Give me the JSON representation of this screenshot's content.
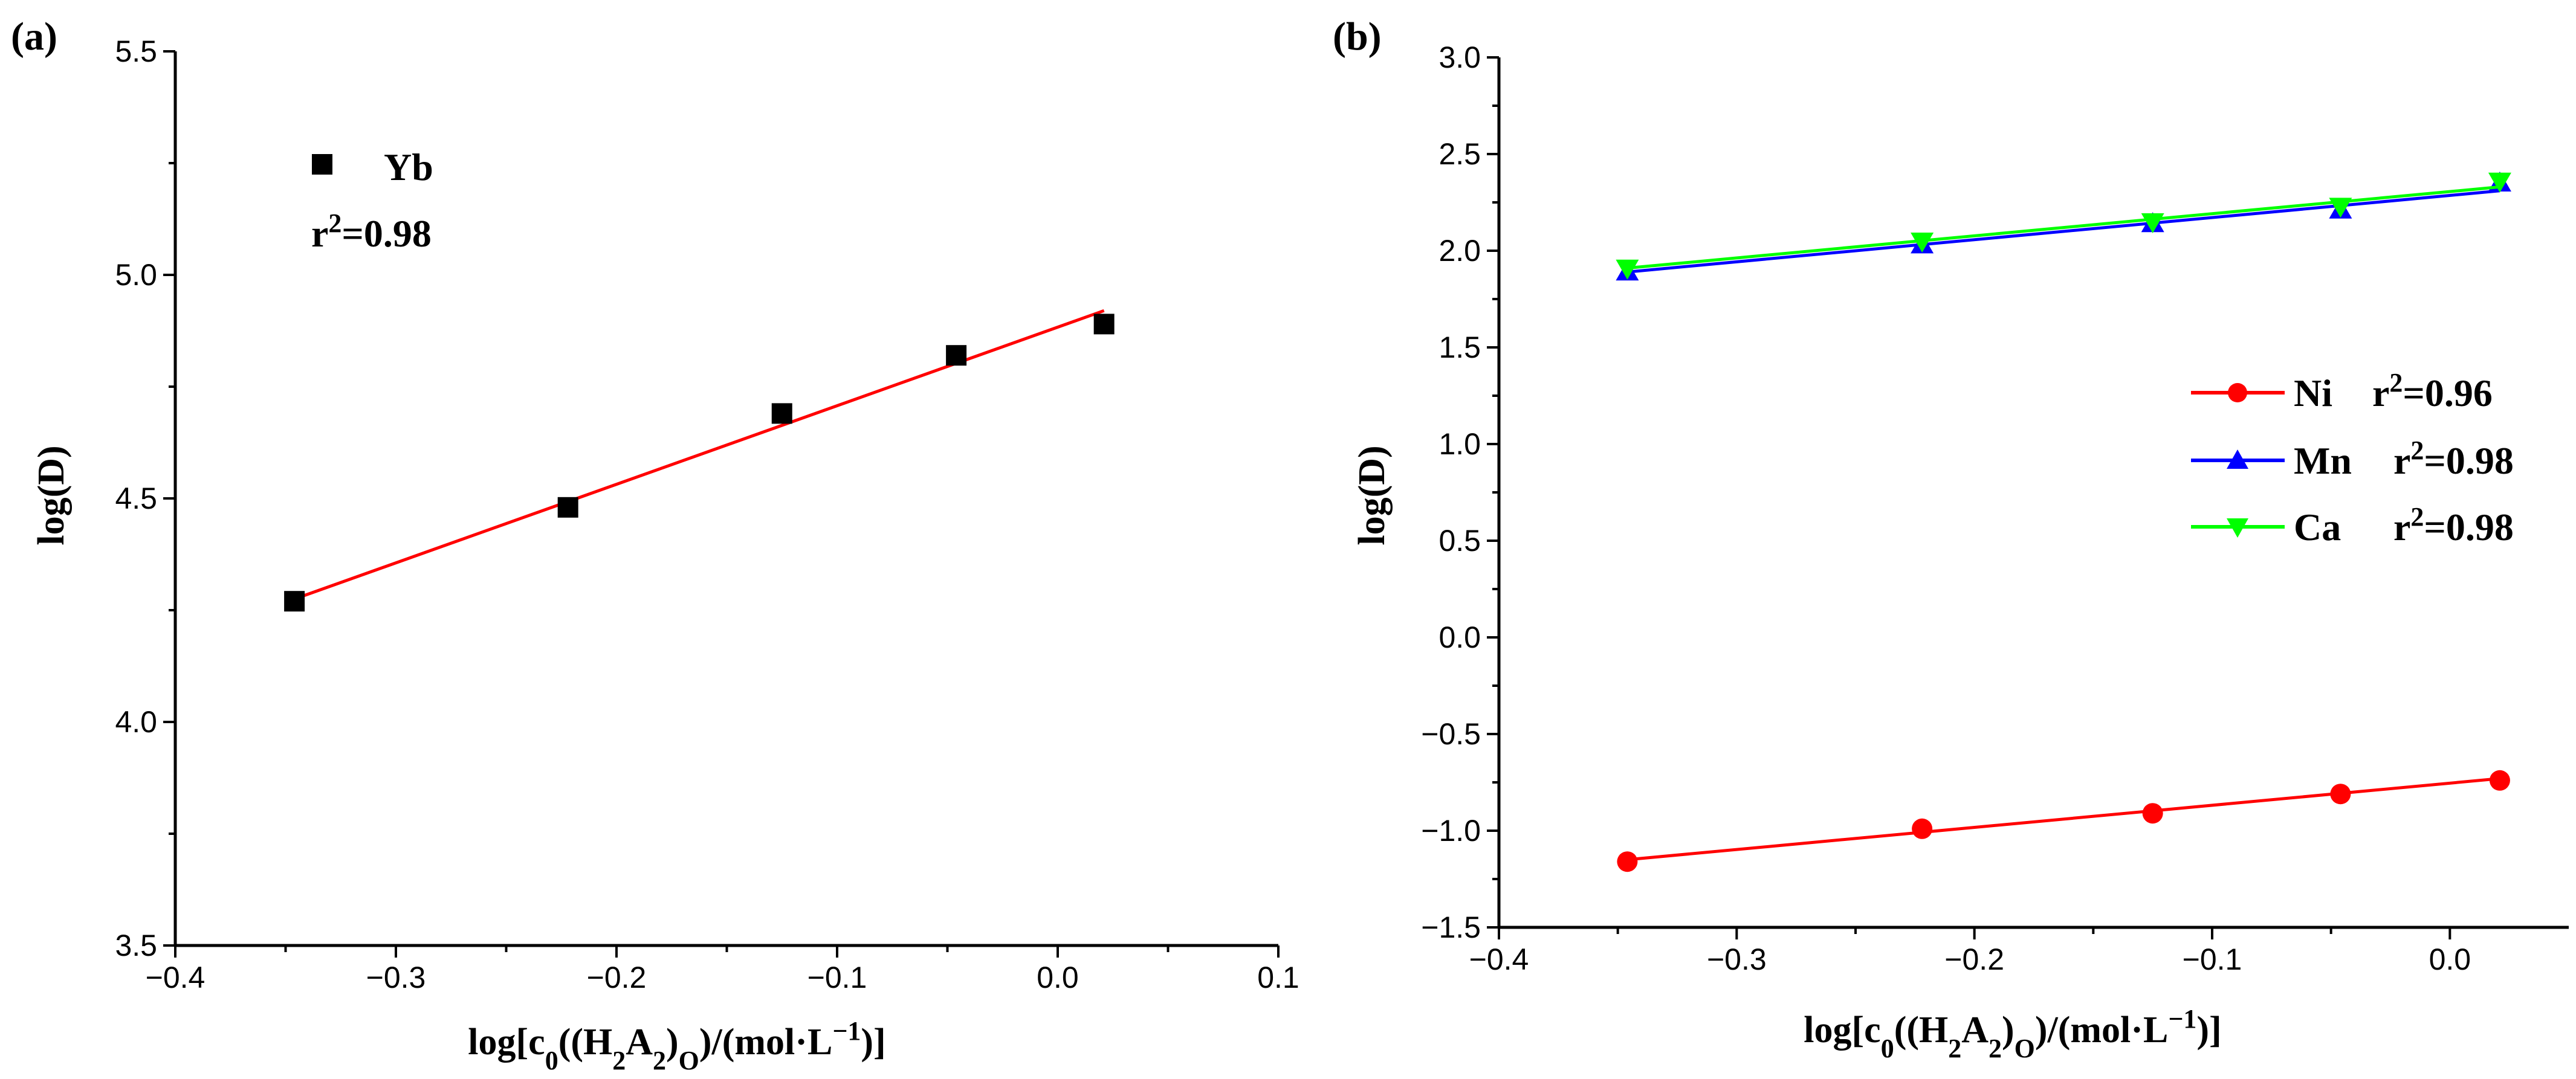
{
  "chart_data": [
    {
      "panel_label": "(a)",
      "type": "scatter",
      "xlabel": "log[c0((H2A2)O)/(mol·L−1)]",
      "ylabel": "log(D)",
      "xlim": [
        -0.4,
        0.1
      ],
      "ylim": [
        3.5,
        5.5
      ],
      "xticks": [
        -0.4,
        -0.3,
        -0.2,
        -0.1,
        0.0,
        0.1
      ],
      "xtick_labels": [
        "−0.4",
        "−0.3",
        "−0.2",
        "−0.1",
        "0.0",
        "0.1"
      ],
      "yticks": [
        3.5,
        4.0,
        4.5,
        5.0,
        5.5
      ],
      "ytick_labels": [
        "3.5",
        "4.0",
        "4.5",
        "5.0",
        "5.5"
      ],
      "legend_position": "top-left",
      "series": [
        {
          "name": "Yb",
          "r2_label": "r2=0.98",
          "color": "#000000",
          "fit_color": "#ff0000",
          "marker": "square",
          "x": [
            -0.346,
            -0.222,
            -0.125,
            -0.046,
            0.021
          ],
          "y": [
            4.27,
            4.48,
            4.69,
            4.82,
            4.89
          ],
          "fit": {
            "x": [
              -0.346,
              0.021
            ],
            "y": [
              4.275,
              4.92
            ]
          }
        }
      ]
    },
    {
      "panel_label": "(b)",
      "type": "line",
      "xlabel": "log[c0((H2A2)O)/(mol·L−1)]",
      "ylabel": "log(D)",
      "xlim": [
        -0.4,
        0.05
      ],
      "ylim": [
        -1.5,
        3.0
      ],
      "xticks": [
        -0.4,
        -0.3,
        -0.2,
        -0.1,
        0.0
      ],
      "xtick_labels": [
        "−0.4",
        "−0.3",
        "−0.2",
        "−0.1",
        "0.0"
      ],
      "yticks": [
        -1.5,
        -1.0,
        -0.5,
        0.0,
        0.5,
        1.0,
        1.5,
        2.0,
        2.5,
        3.0
      ],
      "ytick_labels": [
        "−1.5",
        "−1.0",
        "−0.5",
        "0.0",
        "0.5",
        "1.0",
        "1.5",
        "2.0",
        "2.5",
        "3.0"
      ],
      "legend_position": "right",
      "series": [
        {
          "name": "Ni",
          "r2_label": "r2=0.96",
          "color": "#ff0000",
          "marker": "circle",
          "x": [
            -0.346,
            -0.222,
            -0.125,
            -0.046,
            0.021
          ],
          "y": [
            -1.16,
            -0.99,
            -0.91,
            -0.81,
            -0.74
          ],
          "fit": {
            "x": [
              -0.346,
              0.021
            ],
            "y": [
              -1.15,
              -0.73
            ]
          }
        },
        {
          "name": "Mn",
          "r2_label": "r2=0.98",
          "color": "#0000ff",
          "marker": "triangle-up",
          "x": [
            -0.346,
            -0.222,
            -0.125,
            -0.046,
            0.021
          ],
          "y": [
            1.89,
            2.03,
            2.14,
            2.21,
            2.35
          ],
          "fit": {
            "x": [
              -0.346,
              0.021
            ],
            "y": [
              1.89,
              2.31
            ]
          }
        },
        {
          "name": "Ca",
          "r2_label": "r2=0.98",
          "color": "#00ff00",
          "marker": "triangle-down",
          "x": [
            -0.346,
            -0.222,
            -0.125,
            -0.046,
            0.021
          ],
          "y": [
            1.91,
            2.05,
            2.15,
            2.23,
            2.36
          ],
          "fit": {
            "x": [
              -0.346,
              0.021
            ],
            "y": [
              1.91,
              2.33
            ]
          }
        }
      ]
    }
  ]
}
